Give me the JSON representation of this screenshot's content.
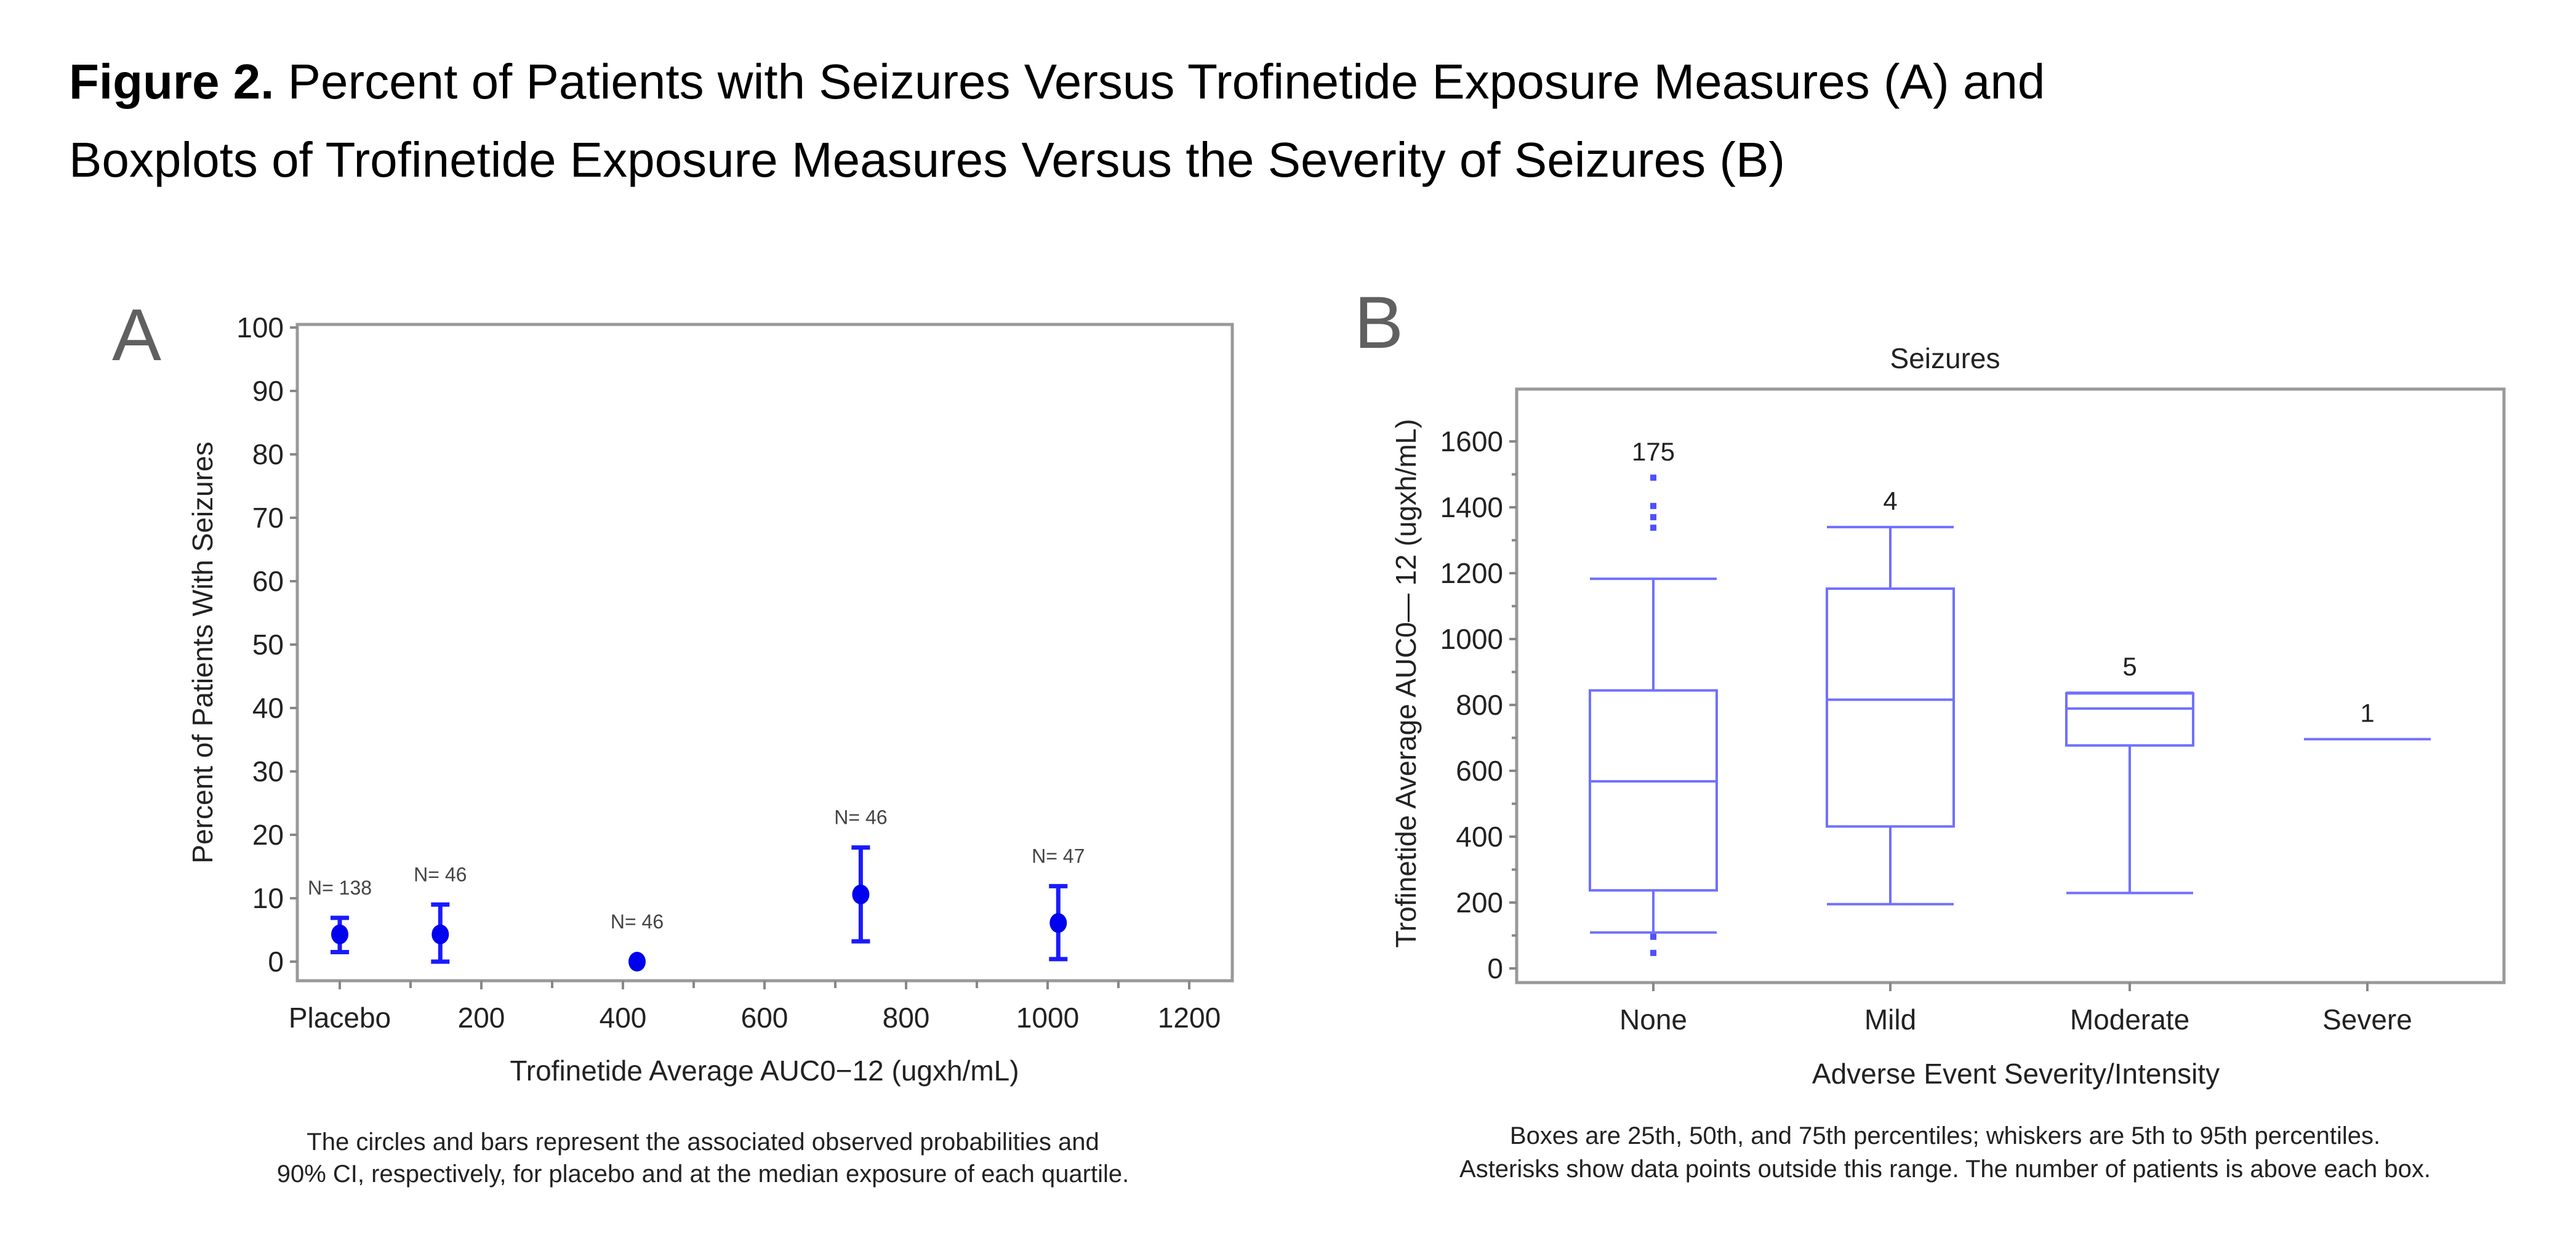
{
  "figure": {
    "title_bold": "Figure 2.",
    "title_line1": " Percent of Patients with Seizures Versus Trofinetide Exposure Measures (A) and",
    "title_line2": "Boxplots of Trofinetide Exposure Measures Versus the Severity of Seizures (B)"
  },
  "colors": {
    "marker": "#0000f0",
    "errorbar": "#1a1aff",
    "box": "#7070ff",
    "frame": "#999999"
  },
  "chart_data": [
    {
      "panel": "A",
      "type": "scatter",
      "title": "",
      "xlabel": "Trofinetide Average AUC0−12 (ugxh/mL)",
      "ylabel": "Percent of Patients With Seizures",
      "xlim": [
        -50,
        1260
      ],
      "ylim": [
        -2,
        102
      ],
      "x_ticks": [
        0,
        200,
        400,
        600,
        800,
        1000,
        1200
      ],
      "x_tick_labels": [
        "Placebo",
        "200",
        "400",
        "600",
        "800",
        "1000",
        "1200"
      ],
      "x_minor_ticks": [
        100,
        300,
        500,
        700,
        900,
        1100
      ],
      "y_ticks": [
        0,
        10,
        20,
        30,
        40,
        50,
        60,
        70,
        80,
        90,
        100
      ],
      "y_tick_labels": [
        "0",
        "10",
        "20",
        "30",
        "40",
        "50",
        "60",
        "70",
        "80",
        "90",
        "100"
      ],
      "grid": false,
      "points": [
        {
          "x": 0,
          "y": 4.3,
          "lower": 1.5,
          "upper": 6.9,
          "label": "N= 138"
        },
        {
          "x": 142,
          "y": 4.3,
          "lower": 0.0,
          "upper": 9.0,
          "label": "N= 46"
        },
        {
          "x": 420,
          "y": 0.0,
          "lower": null,
          "upper": null,
          "label": "N= 46"
        },
        {
          "x": 736,
          "y": 10.6,
          "lower": 3.2,
          "upper": 18.0,
          "label": "N= 46"
        },
        {
          "x": 1015,
          "y": 6.1,
          "lower": 0.4,
          "upper": 11.9,
          "label": "N= 47"
        }
      ],
      "caption_line1": "The circles and bars represent the associated observed probabilities and",
      "caption_line2": "90% CI, respectively, for placebo and at the median exposure of each quartile."
    },
    {
      "panel": "B",
      "type": "box",
      "title": "Seizures",
      "xlabel": "Adverse Event Severity/Intensity",
      "ylabel": "Trofinetide Average AUC0— 12 (ugxh/mL)",
      "ylim": [
        -60,
        1760
      ],
      "y_ticks": [
        0,
        200,
        400,
        600,
        800,
        1000,
        1200,
        1400,
        1600
      ],
      "y_tick_labels": [
        "0",
        "200",
        "400",
        "600",
        "800",
        "1000",
        "1200",
        "1400",
        "1600"
      ],
      "y_minor_ticks": [
        100,
        300,
        500,
        700,
        900,
        1100,
        1300,
        1500
      ],
      "grid": false,
      "categories": [
        "None",
        "Mild",
        "Moderate",
        "Severe"
      ],
      "boxes": [
        {
          "category": "None",
          "n": "175",
          "p5": 109,
          "q1": 237,
          "median": 568,
          "q3": 844,
          "p95": 1183,
          "outliers": [
            1490,
            1404,
            1370,
            1338,
            96,
            47
          ]
        },
        {
          "category": "Mild",
          "n": "4",
          "p5": 195,
          "q1": 431,
          "median": 816,
          "q3": 1153,
          "p95": 1340,
          "outliers": []
        },
        {
          "category": "Moderate",
          "n": "5",
          "p5": 229,
          "q1": 677,
          "median": 789,
          "q3": 835,
          "p95": 837,
          "outliers": []
        },
        {
          "category": "Severe",
          "n": "1",
          "p5": 696,
          "q1": 696,
          "median": 696,
          "q3": 696,
          "p95": 696,
          "outliers": []
        }
      ],
      "caption_line1": "Boxes are 25th, 50th, and 75th percentiles; whiskers are 5th to 95th percentiles.",
      "caption_line2": "Asterisks show data points outside this range. The number of patients is above each box."
    }
  ]
}
